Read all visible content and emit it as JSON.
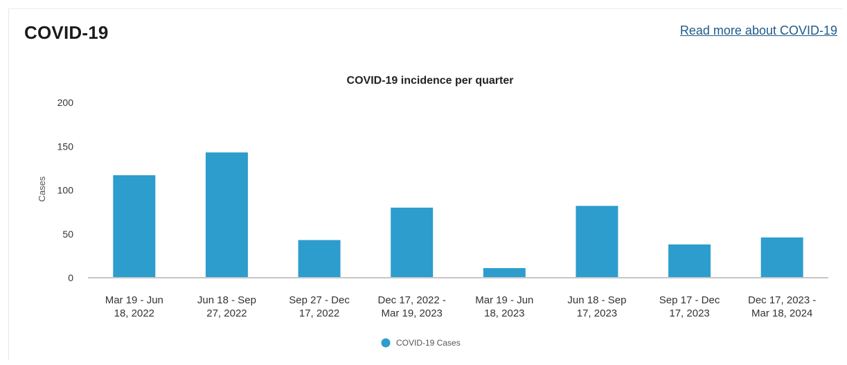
{
  "card": {
    "title": "COVID-19",
    "read_more_link": "Read more about COVID-19"
  },
  "colors": {
    "bar": "#2d9dcd",
    "link": "#1f5a8a",
    "axis": "#c6c6c6"
  },
  "chart_data": {
    "type": "bar",
    "title": "COVID-19 incidence per quarter",
    "xlabel": "",
    "ylabel": "Cases",
    "ylim": [
      0,
      200
    ],
    "yticks": [
      0,
      50,
      100,
      150,
      200
    ],
    "grid": false,
    "legend_position": "bottom-center",
    "categories": [
      [
        "Mar 19 - Jun",
        "18, 2022"
      ],
      [
        "Jun 18 - Sep",
        "27, 2022"
      ],
      [
        "Sep 27 - Dec",
        "17, 2022"
      ],
      [
        "Dec 17, 2022 -",
        "Mar 19, 2023"
      ],
      [
        "Mar 19 - Jun",
        "18, 2023"
      ],
      [
        "Jun 18 - Sep",
        "17, 2023"
      ],
      [
        "Sep 17 - Dec",
        "17, 2023"
      ],
      [
        "Dec 17, 2023 -",
        "Mar 18, 2024"
      ]
    ],
    "series": [
      {
        "name": "COVID-19 Cases",
        "values": [
          117,
          143,
          43,
          80,
          11,
          82,
          38,
          46
        ]
      }
    ]
  }
}
